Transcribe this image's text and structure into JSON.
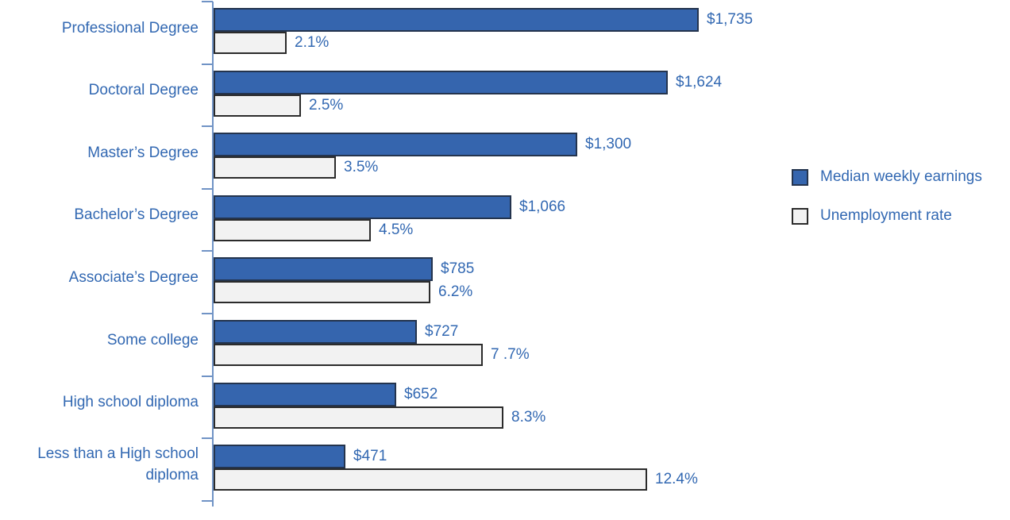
{
  "chart_data": {
    "type": "bar",
    "orientation": "horizontal",
    "title": "",
    "xlabel": "",
    "ylabel": "",
    "grid": false,
    "legend_position": "right",
    "categories": [
      "Professional Degree",
      "Doctoral Degree",
      "Master’s Degree",
      "Bachelor’s Degree",
      "Associate’s Degree",
      "Some college",
      "High school diploma",
      "Less than a High school diploma"
    ],
    "series": [
      {
        "name": "Median weekly earnings",
        "values": [
          1735,
          1624,
          1300,
          1066,
          785,
          727,
          652,
          471
        ],
        "data_labels": [
          "$1,735",
          "$1,624",
          "$1,300",
          "$1,066",
          "$785",
          "$727",
          "$652",
          "$471"
        ],
        "axis_max": 2000,
        "color": "#3565ae",
        "border_color": "#24344e"
      },
      {
        "name": "Unemployment rate",
        "values": [
          2.1,
          2.5,
          3.5,
          4.5,
          6.2,
          7.7,
          8.3,
          12.4
        ],
        "data_labels": [
          "2.1%",
          "2.5%",
          "3.5%",
          "4.5%",
          "6.2%",
          "7 .7%",
          "8.3%",
          "12.4%"
        ],
        "axis_max": 16,
        "color": "#f2f2f2",
        "border_color": "#2b2b2b"
      }
    ]
  },
  "legend": {
    "items": [
      {
        "label": "Median weekly earnings",
        "swatch_color": "#3565ae"
      },
      {
        "label": "Unemployment rate",
        "swatch_color": "#f2f2f2"
      }
    ]
  },
  "colors": {
    "label_text": "#3268b2",
    "axis": "#7093c5",
    "earnings_fill": "#3565ae",
    "earnings_border": "#24344e",
    "unemployment_fill": "#f2f2f2",
    "unemployment_border": "#2b2b2b",
    "background": "#ffffff"
  }
}
